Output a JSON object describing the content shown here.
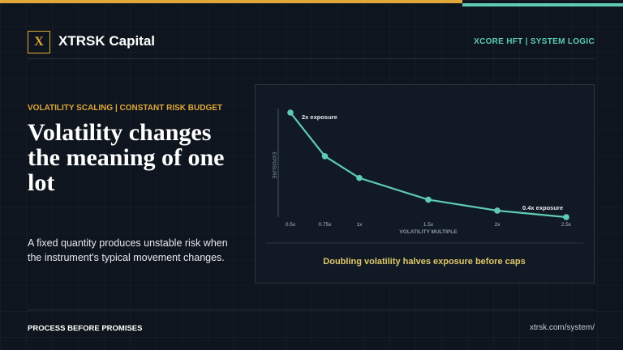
{
  "header": {
    "logo": "X",
    "brand": "XTRSK Capital",
    "tag": "XCORE HFT | SYSTEM LOGIC"
  },
  "kicker": "VOLATILITY SCALING | CONSTANT RISK BUDGET",
  "headline": "Volatility changes the meaning of one lot",
  "body": "A fixed quantity produces unstable risk when the instrument's typical movement changes.",
  "chart_data": {
    "type": "line",
    "x": [
      0.5,
      0.75,
      1,
      1.5,
      2,
      2.5
    ],
    "series": [
      {
        "name": "Exposure",
        "color": "#5fcbb5",
        "values": [
          2,
          1.333,
          1,
          0.667,
          0.5,
          0.4
        ]
      }
    ],
    "xlim": [
      0.5,
      2.5
    ],
    "ylim": [
      0.4,
      2
    ],
    "xticks": [
      {
        "value": 0.5,
        "label": "0.5x"
      },
      {
        "value": 0.75,
        "label": "0.75x"
      },
      {
        "value": 1,
        "label": "1x"
      },
      {
        "value": 1.5,
        "label": "1.5x"
      },
      {
        "value": 2,
        "label": "2x"
      },
      {
        "value": 2.5,
        "label": "2.5x"
      }
    ],
    "x_label": "VOLATILITY MULTIPLE",
    "y_label": "EXPOSURE",
    "annotations": [
      "2x exposure",
      "0.4x exposure"
    ],
    "caption": "Doubling volatility halves exposure before caps"
  },
  "footer": {
    "left": "PROCESS BEFORE PROMISES",
    "right": "xtrsk.com/system/"
  }
}
